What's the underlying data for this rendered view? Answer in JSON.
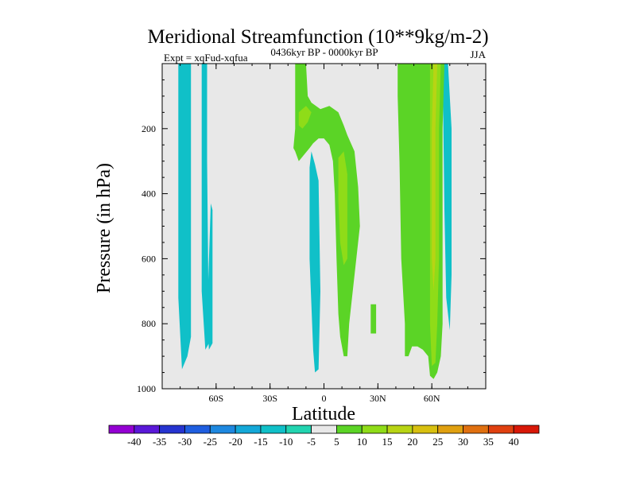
{
  "chart_data": {
    "type": "heatmap",
    "title": "Meridional Streamfunction (10**9kg/m-2)",
    "left_string": "Expt = xqFud-xqfua",
    "center_string": "0436kyr BP - 0000kyr BP",
    "right_string": "JJA",
    "xlabel": "Latitude",
    "ylabel": "Pressure (in hPa)",
    "xlim": [
      -90,
      90
    ],
    "ylim": [
      1000,
      0
    ],
    "x_ticks": [
      {
        "value": -60,
        "label": "60S"
      },
      {
        "value": -30,
        "label": "30S"
      },
      {
        "value": 0,
        "label": "0"
      },
      {
        "value": 30,
        "label": "30N"
      },
      {
        "value": 60,
        "label": "60N"
      }
    ],
    "y_ticks": [
      {
        "value": 200,
        "label": "200"
      },
      {
        "value": 400,
        "label": "400"
      },
      {
        "value": 600,
        "label": "600"
      },
      {
        "value": 800,
        "label": "800"
      },
      {
        "value": 1000,
        "label": "1000"
      }
    ],
    "levels": [
      -40,
      -35,
      -30,
      -25,
      -20,
      -15,
      -10,
      -5,
      5,
      10,
      15,
      20,
      25,
      30,
      35,
      40
    ],
    "level_labels": [
      "-40",
      "-35",
      "-30",
      "-25",
      "-20",
      "-15",
      "-10",
      "-5",
      "5",
      "10",
      "15",
      "20",
      "25",
      "30",
      "35",
      "40"
    ],
    "colors": [
      "#9400d3",
      "#5a18d8",
      "#2634d0",
      "#1f5ee0",
      "#1e88e0",
      "#14a8d8",
      "#10c0c8",
      "#22d4b0",
      "#e8e8e8",
      "#5bd426",
      "#8fdc18",
      "#b8d414",
      "#d8c010",
      "#e0a010",
      "#e07010",
      "#e04010",
      "#d81808"
    ],
    "background_color": "#e8e8e8",
    "regions": [
      {
        "label": "-10 to -5",
        "color": "#10c0c8",
        "outline": [
          [
            -81,
            0
          ],
          [
            -74,
            0
          ],
          [
            -74,
            840
          ],
          [
            -76,
            900
          ],
          [
            -79,
            940
          ],
          [
            -81,
            720
          ]
        ]
      },
      {
        "label": "-10 to -5",
        "color": "#10c0c8",
        "outline": [
          [
            -68,
            0
          ],
          [
            -65,
            0
          ],
          [
            -65,
            300
          ],
          [
            -64,
            860
          ],
          [
            -66,
            880
          ],
          [
            -68,
            700
          ]
        ]
      },
      {
        "label": "-10 to -5",
        "color": "#10c0c8",
        "outline": [
          [
            -65,
            780
          ],
          [
            -63,
            430
          ],
          [
            -62,
            450
          ],
          [
            -62,
            860
          ],
          [
            -64,
            880
          ]
        ]
      },
      {
        "label": "-10 to -5",
        "color": "#10c0c8",
        "outline": [
          [
            -7,
            270
          ],
          [
            -5,
            310
          ],
          [
            -3,
            360
          ],
          [
            -2,
            700
          ],
          [
            -3,
            940
          ],
          [
            -5,
            950
          ],
          [
            -6,
            880
          ],
          [
            -8,
            600
          ],
          [
            -8,
            320
          ]
        ]
      },
      {
        "label": "5 to 10",
        "color": "#5bd426",
        "outline": [
          [
            -16,
            0
          ],
          [
            -10,
            0
          ],
          [
            -9,
            100
          ],
          [
            -7,
            120
          ],
          [
            -2,
            140
          ],
          [
            3,
            130
          ],
          [
            8,
            150
          ],
          [
            11,
            190
          ],
          [
            13,
            220
          ],
          [
            17,
            270
          ],
          [
            19,
            380
          ],
          [
            20,
            500
          ],
          [
            18,
            600
          ],
          [
            16,
            700
          ],
          [
            14,
            800
          ],
          [
            13,
            900
          ],
          [
            11,
            900
          ],
          [
            9,
            840
          ],
          [
            8,
            770
          ],
          [
            7,
            600
          ],
          [
            6,
            400
          ],
          [
            5,
            300
          ],
          [
            3,
            250
          ],
          [
            0,
            230
          ],
          [
            -3,
            230
          ],
          [
            -6,
            245
          ],
          [
            -8,
            260
          ],
          [
            -11,
            280
          ],
          [
            -14,
            300
          ],
          [
            -16,
            270
          ],
          [
            -17,
            260
          ],
          [
            -16,
            200
          ]
        ]
      },
      {
        "label": "10 to 15",
        "color": "#8fdc18",
        "outline": [
          [
            -14,
            150
          ],
          [
            -10,
            130
          ],
          [
            -7,
            150
          ],
          [
            -9,
            180
          ],
          [
            -12,
            200
          ],
          [
            -14,
            190
          ]
        ]
      },
      {
        "label": "10 to 15",
        "color": "#8fdc18",
        "outline": [
          [
            8,
            290
          ],
          [
            11,
            270
          ],
          [
            13,
            340
          ],
          [
            13,
            600
          ],
          [
            11,
            620
          ],
          [
            9,
            550
          ],
          [
            8,
            420
          ]
        ]
      },
      {
        "label": "5 to 10",
        "color": "#5bd426",
        "outline": [
          [
            26,
            740
          ],
          [
            29,
            740
          ],
          [
            29,
            830
          ],
          [
            26,
            830
          ]
        ]
      },
      {
        "label": "-10 to -5",
        "color": "#10c0c8",
        "outline": [
          [
            66,
            0
          ],
          [
            69,
            0
          ],
          [
            71,
            200
          ],
          [
            71,
            650
          ],
          [
            70,
            820
          ],
          [
            68,
            720
          ],
          [
            67,
            450
          ]
        ]
      },
      {
        "label": "5 to 10",
        "color": "#5bd426",
        "outline": [
          [
            41,
            0
          ],
          [
            67,
            0
          ],
          [
            66,
            200
          ],
          [
            66,
            500
          ],
          [
            66,
            800
          ],
          [
            65,
            900
          ],
          [
            63,
            950
          ],
          [
            61,
            970
          ],
          [
            59,
            960
          ],
          [
            58,
            900
          ],
          [
            55,
            880
          ],
          [
            52,
            870
          ],
          [
            49,
            870
          ],
          [
            47,
            900
          ],
          [
            45,
            900
          ],
          [
            45,
            800
          ],
          [
            43,
            600
          ],
          [
            42,
            300
          ],
          [
            41,
            100
          ]
        ]
      },
      {
        "label": "10 to 15",
        "color": "#8fdc18",
        "outline": [
          [
            59,
            0
          ],
          [
            65,
            0
          ],
          [
            64,
            200
          ],
          [
            64,
            600
          ],
          [
            63,
            800
          ],
          [
            62,
            920
          ],
          [
            60,
            930
          ],
          [
            59,
            800
          ],
          [
            59,
            400
          ]
        ]
      },
      {
        "label": "15 to 20",
        "color": "#b8d414",
        "outline": [
          [
            61,
            0
          ],
          [
            63,
            0
          ],
          [
            62,
            200
          ],
          [
            62,
            600
          ],
          [
            61,
            700
          ],
          [
            60,
            600
          ],
          [
            60,
            200
          ]
        ]
      }
    ]
  }
}
